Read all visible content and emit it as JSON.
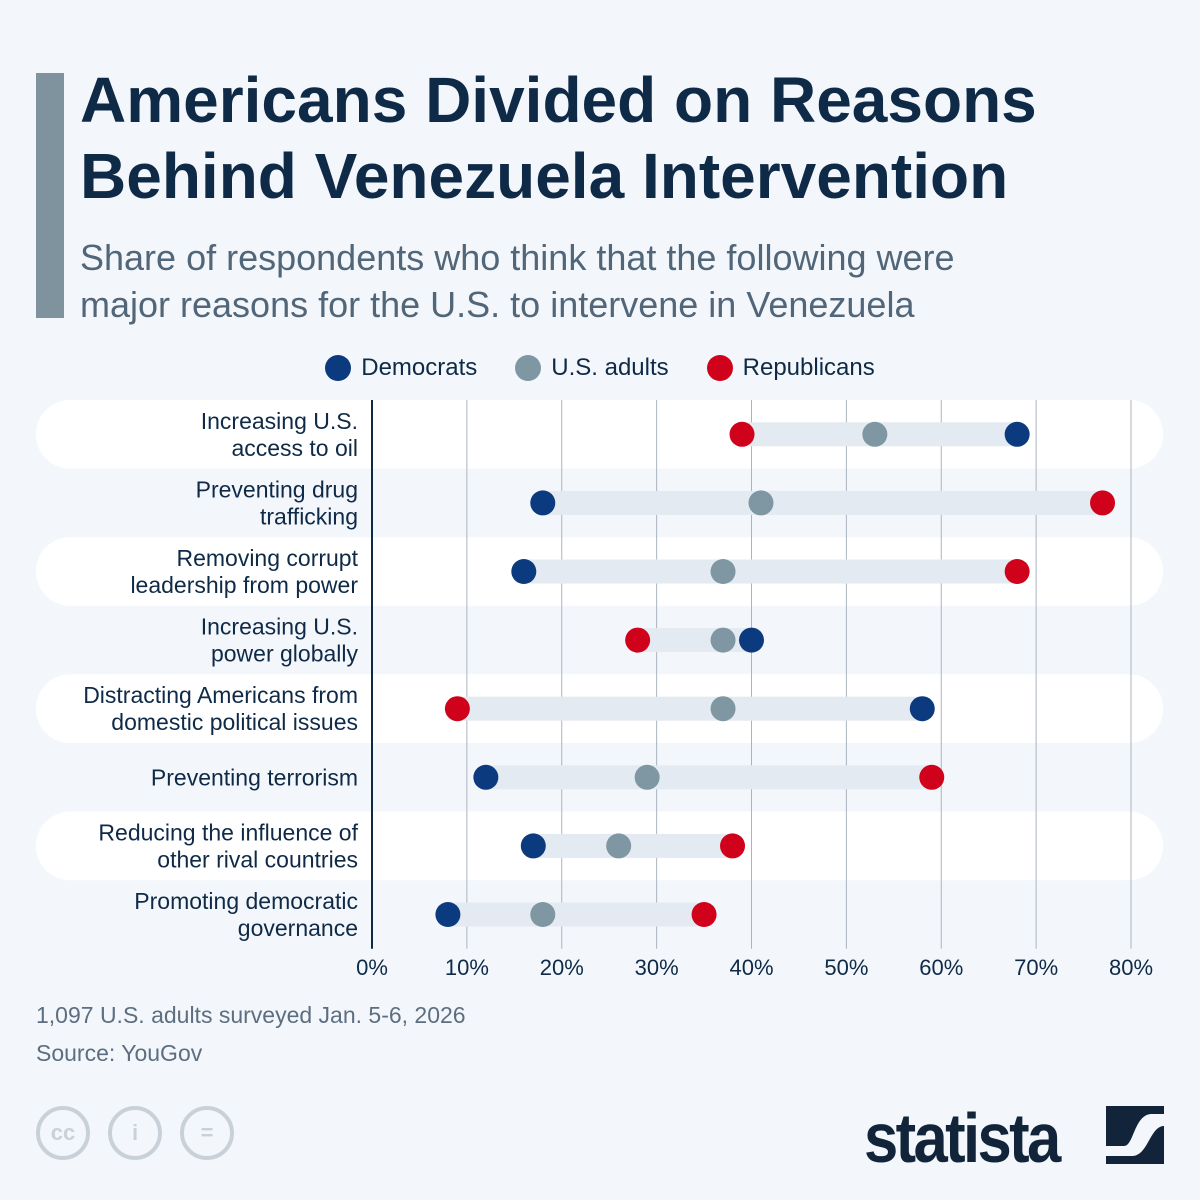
{
  "title_line1": "Americans Divided on Reasons",
  "title_line2": "Behind Venezuela Intervention",
  "subtitle_line1": "Share of respondents who think that the following were",
  "subtitle_line2": "major reasons for the U.S. to intervene in Venezuela",
  "colors": {
    "democrats": "#0b3a7e",
    "us_adults": "#7f96a3",
    "republicans": "#d0021b",
    "track": "#e3eaf1"
  },
  "chart_data": {
    "type": "dot-range",
    "xlim": [
      0,
      80
    ],
    "x_ticks": [
      "0%",
      "10%",
      "20%",
      "30%",
      "40%",
      "50%",
      "60%",
      "70%",
      "80%"
    ],
    "grid": true,
    "legend_placement": "top",
    "legend": [
      "Democrats",
      "U.S. adults",
      "Republicans"
    ],
    "categories": [
      [
        "Increasing U.S.",
        "access to oil"
      ],
      [
        "Preventing drug",
        "trafficking"
      ],
      [
        "Removing corrupt",
        "leadership from power"
      ],
      [
        "Increasing U.S.",
        "power globally"
      ],
      [
        "Distracting Americans from",
        "domestic political issues"
      ],
      [
        "Preventing terrorism"
      ],
      [
        "Reducing the influence of",
        "other rival countries"
      ],
      [
        "Promoting democratic",
        "governance"
      ]
    ],
    "series": [
      {
        "name": "Democrats",
        "values": [
          68,
          18,
          16,
          40,
          58,
          12,
          17,
          8
        ]
      },
      {
        "name": "U.S. adults",
        "values": [
          53,
          41,
          37,
          37,
          37,
          29,
          26,
          18
        ]
      },
      {
        "name": "Republicans",
        "values": [
          39,
          77,
          68,
          28,
          9,
          59,
          38,
          35
        ]
      }
    ]
  },
  "footer": {
    "note": "1,097 U.S. adults surveyed Jan. 5-6, 2026",
    "source": "Source: YouGov",
    "logo": "statista"
  }
}
